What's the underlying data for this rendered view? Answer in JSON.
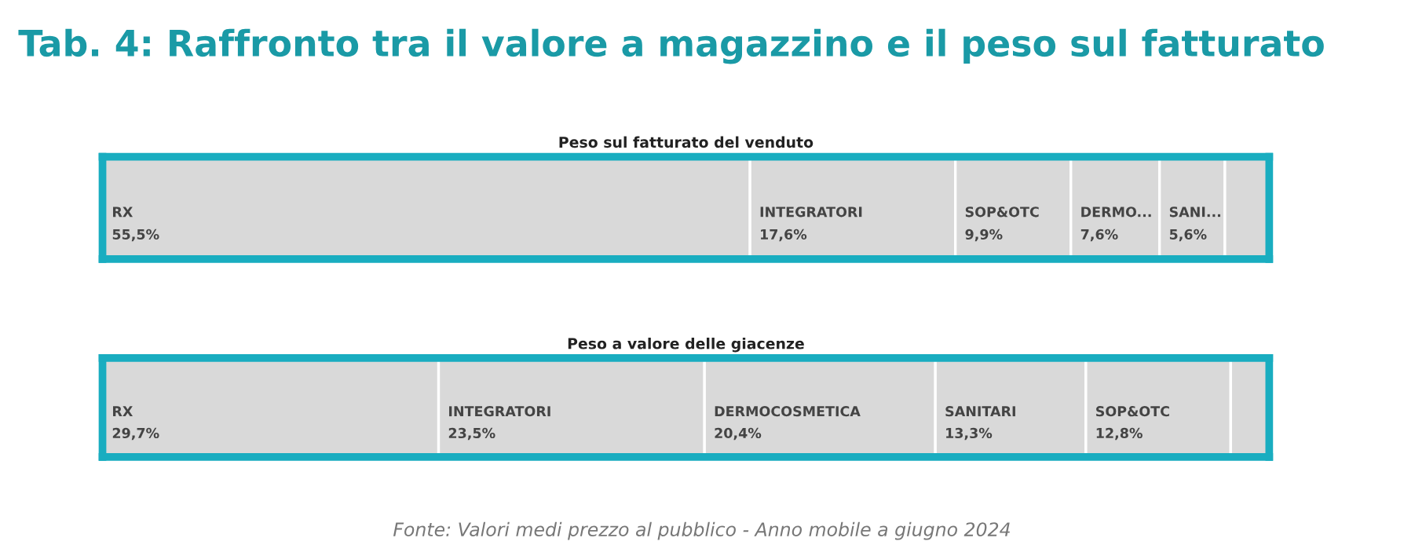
{
  "chart_data": [
    {
      "type": "bar",
      "title": "Tab. 4: Raffronto tra il valore a magazzino e il peso sul fatturato",
      "subtitle": "Peso sul fatturato del venduto",
      "orientation": "horizontal",
      "stacked": true,
      "categories": [
        null
      ],
      "xlim": [
        0,
        100
      ],
      "tick_labels": false,
      "grid": false,
      "legend": false,
      "series": [
        {
          "name": "RX",
          "color": "#d9d9d9",
          "values": [
            55.5
          ],
          "value_labels": [
            "55,5%"
          ]
        },
        {
          "name": "INTEGRATORI",
          "color": "#d9d9d9",
          "values": [
            17.6
          ],
          "value_labels": [
            "17,6%"
          ]
        },
        {
          "name": "SOP&OTC",
          "color": "#d9d9d9",
          "values": [
            9.9
          ],
          "value_labels": [
            "9,9%"
          ]
        },
        {
          "name": "DERMO...",
          "color": "#d9d9d9",
          "values": [
            7.6
          ],
          "value_labels": [
            "7,6%"
          ]
        },
        {
          "name": "SANI...",
          "color": "#d9d9d9",
          "values": [
            5.6
          ],
          "value_labels": [
            "5,6%"
          ]
        },
        {
          "color": "#d9d9d9",
          "values": [
            3.8
          ],
          "value_labels": [
            null
          ]
        }
      ]
    },
    {
      "type": "bar",
      "subtitle": "Peso a valore delle giacenze",
      "orientation": "horizontal",
      "stacked": true,
      "categories": [
        null
      ],
      "xlim": [
        0,
        103.1
      ],
      "tick_labels": false,
      "grid": false,
      "legend": false,
      "annotations": [
        "Fonte: Valori medi prezzo al pubblico - Anno mobile a giugno 2024"
      ],
      "series": [
        {
          "name": "RX",
          "color": "#d9d9d9",
          "values": [
            29.7
          ],
          "value_labels": [
            "29,7%"
          ]
        },
        {
          "name": "INTEGRATORI",
          "color": "#d9d9d9",
          "values": [
            23.5
          ],
          "value_labels": [
            "23,5%"
          ]
        },
        {
          "name": "DERMOCOSMETICA",
          "color": "#d9d9d9",
          "values": [
            20.4
          ],
          "value_labels": [
            "20,4%"
          ]
        },
        {
          "name": "SANITARI",
          "color": "#d9d9d9",
          "values": [
            13.3
          ],
          "value_labels": [
            "13,3%"
          ]
        },
        {
          "name": "SOP&OTC",
          "color": "#d9d9d9",
          "values": [
            12.8
          ],
          "value_labels": [
            "12,8%"
          ]
        },
        {
          "color": "#d9d9d9",
          "values": [
            3.4
          ],
          "value_labels": [
            null
          ]
        }
      ]
    }
  ]
}
